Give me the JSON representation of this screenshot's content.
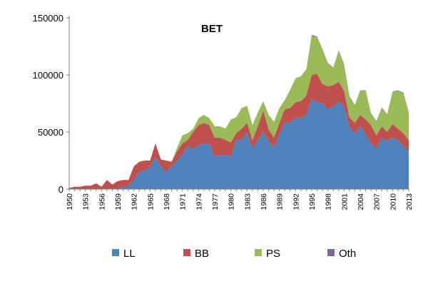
{
  "chart_data": {
    "type": "area",
    "stacked": true,
    "title": "BET",
    "xlabel": "",
    "ylabel": "",
    "ylim": [
      0,
      150000
    ],
    "yticks": [
      "0",
      "50000",
      "100000",
      "150000"
    ],
    "x_tick_labels": [
      "1950",
      "1953",
      "1956",
      "1959",
      "1962",
      "1965",
      "1968",
      "1971",
      "1974",
      "1977",
      "1980",
      "1983",
      "1986",
      "1989",
      "1992",
      "1995",
      "1998",
      "2001",
      "2004",
      "2007",
      "2010",
      "2013"
    ],
    "grid": false,
    "legend_position": "bottom",
    "x": [
      1950,
      1951,
      1952,
      1953,
      1954,
      1955,
      1956,
      1957,
      1958,
      1959,
      1960,
      1961,
      1962,
      1963,
      1964,
      1965,
      1966,
      1967,
      1968,
      1969,
      1970,
      1971,
      1972,
      1973,
      1974,
      1975,
      1976,
      1977,
      1978,
      1979,
      1980,
      1981,
      1982,
      1983,
      1984,
      1985,
      1986,
      1987,
      1988,
      1989,
      1990,
      1991,
      1992,
      1993,
      1994,
      1995,
      1996,
      1997,
      1998,
      1999,
      2000,
      2001,
      2002,
      2003,
      2004,
      2005,
      2006,
      2007,
      2008,
      2009,
      2010,
      2011,
      2012,
      2013
    ],
    "series": [
      {
        "name": "LL",
        "color": "#4F81BD",
        "values": [
          0,
          0,
          0,
          0,
          0,
          0,
          0,
          0,
          0,
          0,
          2000,
          3000,
          8000,
          15000,
          16000,
          19000,
          28000,
          20000,
          15000,
          20000,
          25000,
          30000,
          38000,
          35000,
          38000,
          40000,
          40000,
          28000,
          30000,
          30000,
          28000,
          43000,
          43000,
          50000,
          35000,
          43000,
          50000,
          42000,
          36000,
          48000,
          58000,
          58000,
          63000,
          62000,
          65000,
          79000,
          76000,
          75000,
          70000,
          72000,
          77000,
          72000,
          55000,
          48000,
          55000,
          48000,
          40000,
          35000,
          45000,
          42000,
          45000,
          43000,
          38000,
          33000
        ]
      },
      {
        "name": "BB",
        "color": "#C0504D",
        "values": [
          1000,
          2000,
          2000,
          3000,
          3000,
          5000,
          2000,
          8000,
          4000,
          7000,
          6000,
          5000,
          12000,
          9000,
          9000,
          6000,
          12000,
          6000,
          10000,
          4000,
          8000,
          10000,
          5000,
          15000,
          18000,
          18000,
          16000,
          17000,
          15000,
          13000,
          13000,
          6000,
          10000,
          8000,
          8000,
          12000,
          19000,
          10000,
          9000,
          10000,
          12000,
          13000,
          13000,
          15000,
          17000,
          21000,
          25000,
          17000,
          20000,
          19000,
          17000,
          14000,
          8000,
          10000,
          10000,
          13000,
          16000,
          12000,
          10000,
          8000,
          12000,
          10000,
          11000,
          10000
        ]
      },
      {
        "name": "PS",
        "color": "#9BBB59",
        "values": [
          0,
          0,
          0,
          0,
          0,
          0,
          0,
          0,
          0,
          0,
          0,
          0,
          0,
          0,
          0,
          0,
          0,
          0,
          0,
          0,
          3000,
          7000,
          6000,
          3000,
          6000,
          7000,
          6000,
          10000,
          10000,
          10000,
          20000,
          14000,
          18000,
          15000,
          13000,
          12000,
          8000,
          13000,
          14000,
          13000,
          8000,
          16000,
          21000,
          22000,
          23000,
          34000,
          32000,
          30000,
          20000,
          15000,
          27000,
          23000,
          18000,
          15000,
          21000,
          25000,
          10000,
          12000,
          16000,
          15000,
          28000,
          33000,
          35000,
          24000
        ]
      },
      {
        "name": "Oth",
        "color": "#8064A2",
        "values": [
          0,
          0,
          0,
          0,
          0,
          0,
          0,
          0,
          0,
          0,
          0,
          0,
          0,
          0,
          0,
          0,
          0,
          0,
          0,
          0,
          0,
          0,
          0,
          0,
          0,
          0,
          0,
          0,
          0,
          0,
          0,
          0,
          0,
          0,
          0,
          0,
          0,
          0,
          0,
          0,
          0,
          0,
          0,
          0,
          0,
          1000,
          500,
          500,
          500,
          500,
          500,
          500,
          500,
          500,
          500,
          500,
          500,
          500,
          500,
          500,
          500,
          500,
          500,
          500
        ]
      }
    ]
  }
}
